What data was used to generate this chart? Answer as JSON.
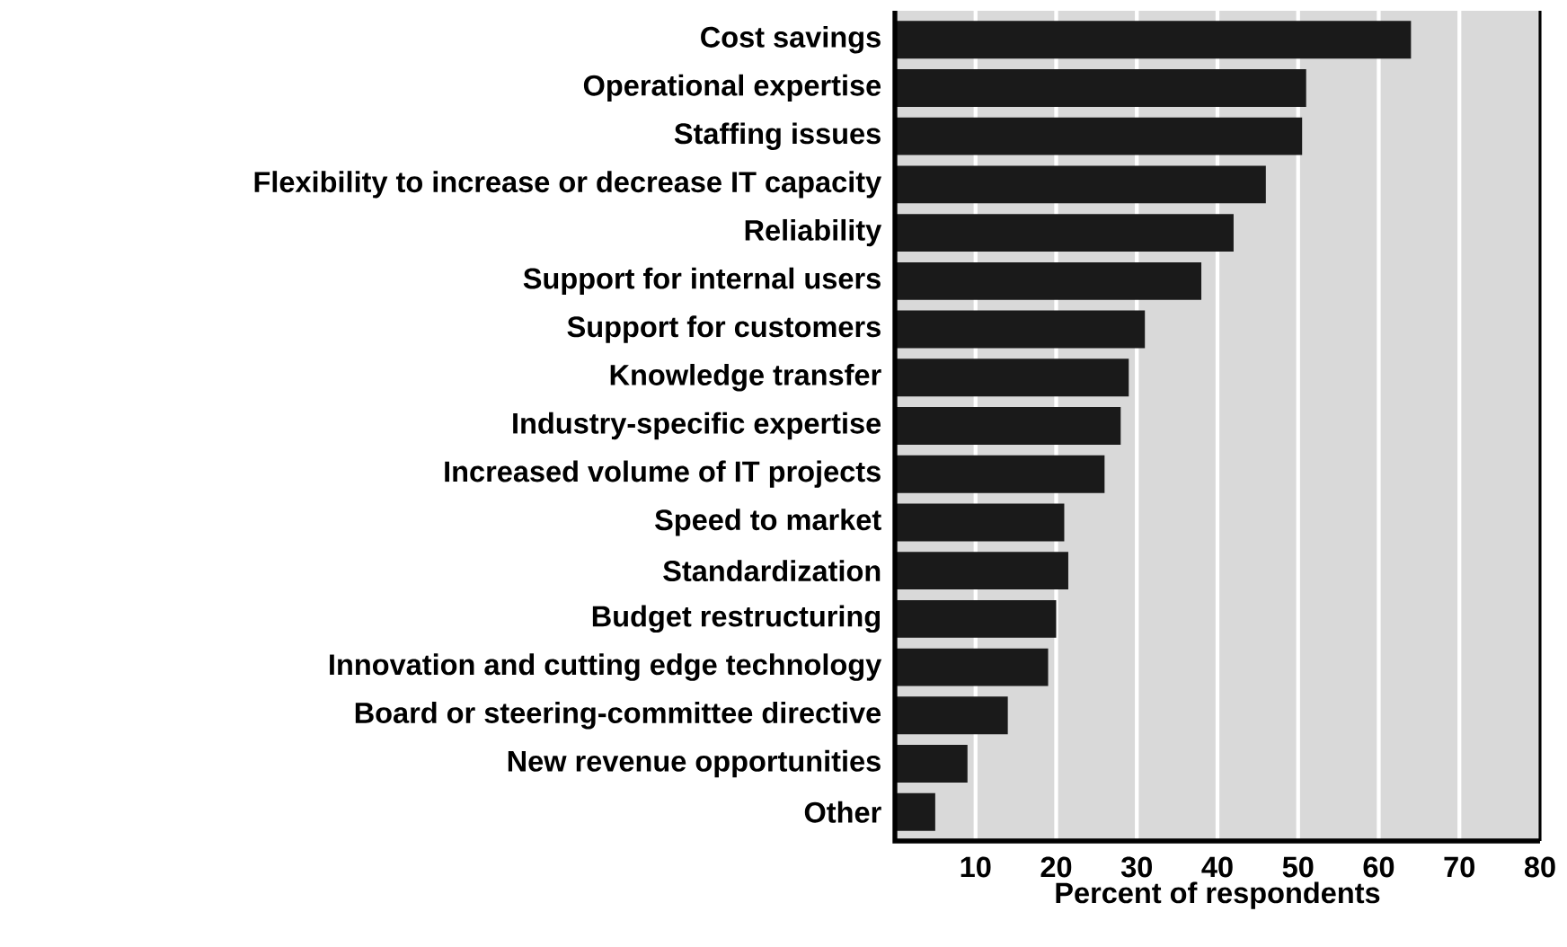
{
  "chart_data": {
    "type": "bar",
    "orientation": "horizontal",
    "xlabel": "Percent of respondents",
    "categories": [
      "Cost savings",
      "Operational expertise",
      "Staffing issues",
      "Flexibility to increase or decrease IT capacity",
      "Reliability",
      "Support for internal users",
      "Support for customers",
      "Knowledge transfer",
      "Industry-specific expertise",
      "Increased volume of IT projects",
      "Speed to market",
      "Standardization",
      "Budget restructuring",
      "Innovation and cutting edge technology",
      "Board or steering-committee directive",
      "New revenue opportunities",
      "Other"
    ],
    "values": [
      64,
      51,
      50.5,
      46,
      42,
      38,
      31,
      29,
      28,
      26,
      21,
      21.5,
      20,
      19,
      14,
      9,
      5
    ],
    "color": "#1a1a1a",
    "xlim": [
      0,
      80
    ],
    "xticks": [
      10,
      20,
      30,
      40,
      50,
      60,
      70,
      80
    ],
    "grid": "x"
  }
}
